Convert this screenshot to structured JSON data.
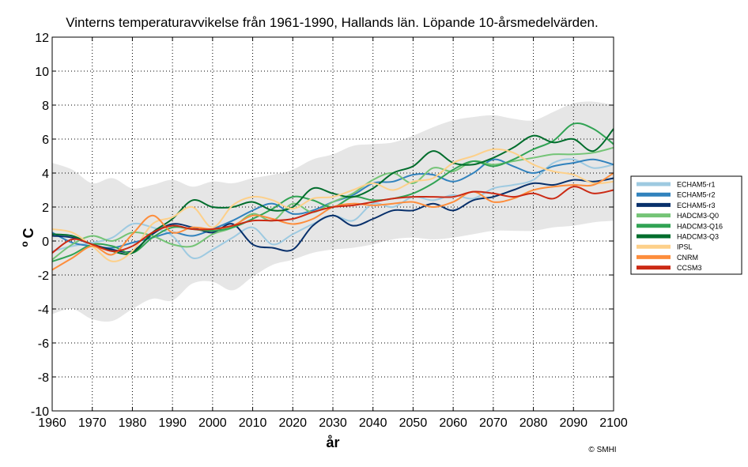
{
  "chart_data": {
    "type": "line",
    "title": "Vinterns temperaturavvikelse från 1961-1990, Hallands län. Löpande 10-årsmedelvärden.",
    "xlabel": "år",
    "ylabel_super": "o",
    "ylabel_main": "C",
    "xlim": [
      1960,
      2100
    ],
    "ylim": [
      -10,
      12
    ],
    "xticks": [
      1960,
      1970,
      1980,
      1990,
      2000,
      2010,
      2020,
      2030,
      2040,
      2050,
      2060,
      2070,
      2080,
      2090,
      2100
    ],
    "yticks": [
      -10,
      -8,
      -6,
      -4,
      -2,
      0,
      2,
      4,
      6,
      8,
      10,
      12
    ],
    "grid": true,
    "legend_position": "right",
    "credit": "© SMHI",
    "band": {
      "x": [
        1960,
        1965,
        1970,
        1975,
        1980,
        1985,
        1990,
        1995,
        2000,
        2005,
        2010,
        2015,
        2020,
        2025,
        2030,
        2035,
        2040,
        2045,
        2050,
        2055,
        2060,
        2065,
        2070,
        2075,
        2080,
        2085,
        2090,
        2095,
        2100
      ],
      "upper": [
        4.6,
        4.2,
        3.4,
        3.7,
        3.1,
        3.3,
        3.6,
        3.2,
        3.5,
        3.4,
        3.7,
        3.9,
        4.2,
        4.8,
        5.1,
        5.6,
        5.7,
        5.8,
        6.2,
        6.7,
        7.1,
        7.3,
        7.4,
        7.2,
        7.1,
        7.6,
        8.1,
        8.2,
        8.0
      ],
      "lower": [
        -4.3,
        -4.0,
        -4.6,
        -4.7,
        -4.0,
        -3.4,
        -3.5,
        -2.5,
        -2.4,
        -2.9,
        -2.1,
        -1.4,
        -1.1,
        -0.7,
        -0.5,
        -0.4,
        -0.2,
        0.1,
        0.2,
        0.1,
        0.2,
        0.4,
        0.6,
        0.6,
        0.6,
        0.8,
        0.9,
        1.1,
        1.2
      ]
    },
    "series": [
      {
        "name": "ECHAM5-r1",
        "color": "#9ecae1",
        "x": [
          1960,
          1965,
          1970,
          1975,
          1980,
          1985,
          1990,
          1995,
          2000,
          2005,
          2010,
          2015,
          2020,
          2025,
          2030,
          2035,
          2040,
          2045,
          2050,
          2055,
          2060,
          2065,
          2070,
          2075,
          2080,
          2085,
          2090,
          2095,
          2100
        ],
        "values": [
          -0.6,
          -0.3,
          -0.1,
          0.2,
          1.0,
          0.8,
          0.3,
          -1.0,
          -0.5,
          0.2,
          0.8,
          -0.2,
          0.4,
          1.0,
          1.5,
          1.2,
          2.2,
          2.0,
          2.6,
          2.4,
          2.7,
          2.5,
          3.1,
          3.3,
          3.6,
          4.6,
          4.8,
          4.3,
          4.5
        ]
      },
      {
        "name": "ECHAM5-r2",
        "color": "#3182bd",
        "x": [
          1960,
          1965,
          1970,
          1975,
          1980,
          1985,
          1990,
          1995,
          2000,
          2005,
          2010,
          2015,
          2020,
          2025,
          2030,
          2035,
          2040,
          2045,
          2050,
          2055,
          2060,
          2065,
          2070,
          2075,
          2080,
          2085,
          2090,
          2095,
          2100
        ],
        "values": [
          0.5,
          -0.1,
          -0.3,
          -0.4,
          -0.1,
          0.2,
          0.5,
          0.3,
          0.7,
          1.2,
          1.8,
          2.2,
          1.6,
          1.8,
          2.3,
          2.7,
          3.4,
          3.5,
          3.9,
          3.9,
          3.5,
          4.0,
          4.8,
          4.4,
          4.0,
          4.4,
          4.6,
          4.8,
          4.5
        ]
      },
      {
        "name": "ECHAM5-r3",
        "color": "#08306b",
        "x": [
          1960,
          1965,
          1970,
          1975,
          1980,
          1985,
          1990,
          1995,
          2000,
          2005,
          2010,
          2015,
          2020,
          2025,
          2030,
          2035,
          2040,
          2045,
          2050,
          2055,
          2060,
          2065,
          2070,
          2075,
          2080,
          2085,
          2090,
          2095,
          2100
        ],
        "values": [
          0.3,
          0.2,
          -0.2,
          -0.5,
          -0.6,
          0.4,
          1.0,
          0.8,
          0.5,
          1.0,
          -0.2,
          -0.4,
          -0.5,
          0.9,
          1.5,
          0.9,
          1.3,
          1.8,
          1.8,
          2.2,
          1.8,
          2.4,
          2.6,
          3.0,
          3.4,
          3.3,
          3.6,
          3.5,
          3.7
        ]
      },
      {
        "name": "HADCM3-Q0",
        "color": "#74c476",
        "x": [
          1960,
          1965,
          1970,
          1975,
          1980,
          1985,
          1990,
          1995,
          2000,
          2005,
          2010,
          2015,
          2020,
          2025,
          2030,
          2035,
          2040,
          2045,
          2050,
          2055,
          2060,
          2065,
          2070,
          2075,
          2080,
          2085,
          2090,
          2095,
          2100
        ],
        "values": [
          -1.1,
          -0.2,
          0.3,
          0.0,
          0.5,
          0.3,
          -0.2,
          -0.3,
          0.4,
          0.8,
          1.6,
          1.2,
          2.2,
          1.7,
          2.3,
          2.8,
          3.6,
          4.0,
          3.4,
          4.3,
          4.1,
          4.7,
          4.5,
          4.7,
          4.9,
          5.1,
          5.1,
          5.2,
          5.5
        ]
      },
      {
        "name": "HADCM3-Q16",
        "color": "#31a354",
        "x": [
          1960,
          1965,
          1970,
          1975,
          1980,
          1985,
          1990,
          1995,
          2000,
          2005,
          2010,
          2015,
          2020,
          2025,
          2030,
          2035,
          2040,
          2045,
          2050,
          2055,
          2060,
          2065,
          2070,
          2075,
          2080,
          2085,
          2090,
          2095,
          2100
        ],
        "values": [
          -1.2,
          -0.8,
          -0.2,
          -0.3,
          -0.7,
          0.2,
          0.8,
          0.7,
          0.6,
          0.8,
          1.3,
          1.9,
          2.6,
          2.4,
          2.0,
          2.6,
          2.4,
          2.5,
          2.8,
          3.4,
          4.2,
          4.7,
          4.4,
          4.8,
          5.4,
          5.9,
          6.9,
          6.6,
          5.7
        ]
      },
      {
        "name": "HADCM3-Q3",
        "color": "#006d2c",
        "x": [
          1960,
          1965,
          1970,
          1975,
          1980,
          1985,
          1990,
          1995,
          2000,
          2005,
          2010,
          2015,
          2020,
          2025,
          2030,
          2035,
          2040,
          2045,
          2050,
          2055,
          2060,
          2065,
          2070,
          2075,
          2080,
          2085,
          2090,
          2095,
          2100
        ],
        "values": [
          0.4,
          0.3,
          -0.2,
          -0.6,
          -0.7,
          0.5,
          1.3,
          2.4,
          2.0,
          2.0,
          2.3,
          1.8,
          2.0,
          3.1,
          2.8,
          2.6,
          3.1,
          4.0,
          4.4,
          5.3,
          4.6,
          4.5,
          4.9,
          5.5,
          6.2,
          5.8,
          6.0,
          5.3,
          6.6
        ]
      },
      {
        "name": "IPSL",
        "color": "#fdd08a",
        "x": [
          1960,
          1965,
          1970,
          1975,
          1980,
          1985,
          1990,
          1995,
          2000,
          2005,
          2010,
          2015,
          2020,
          2025,
          2030,
          2035,
          2040,
          2045,
          2050,
          2055,
          2060,
          2065,
          2070,
          2075,
          2080,
          2085,
          2090,
          2095,
          2100
        ],
        "values": [
          0.7,
          0.5,
          -0.3,
          -1.2,
          -0.6,
          1.0,
          1.4,
          2.0,
          0.8,
          2.1,
          2.6,
          2.4,
          1.9,
          2.5,
          2.6,
          3.0,
          3.4,
          3.0,
          3.5,
          3.7,
          4.6,
          5.0,
          5.4,
          5.2,
          4.5,
          4.1,
          3.9,
          3.4,
          3.5
        ]
      },
      {
        "name": "CNRM",
        "color": "#fd8d3c",
        "x": [
          1960,
          1965,
          1970,
          1975,
          1980,
          1985,
          1990,
          1995,
          2000,
          2005,
          2010,
          2015,
          2020,
          2025,
          2030,
          2035,
          2040,
          2045,
          2050,
          2055,
          2060,
          2065,
          2070,
          2075,
          2080,
          2085,
          2090,
          2095,
          2100
        ],
        "values": [
          -1.7,
          -1.0,
          -0.3,
          -0.8,
          0.4,
          1.5,
          0.5,
          0.8,
          0.7,
          0.9,
          1.5,
          1.3,
          1.0,
          1.3,
          2.0,
          2.2,
          2.1,
          2.2,
          2.3,
          2.0,
          2.3,
          2.9,
          2.3,
          2.5,
          3.0,
          3.2,
          3.3,
          3.3,
          4.0
        ]
      },
      {
        "name": "CCSM3",
        "color": "#cb2a14",
        "x": [
          1960,
          1965,
          1970,
          1975,
          1980,
          1985,
          1990,
          1995,
          2000,
          2005,
          2010,
          2015,
          2020,
          2025,
          2030,
          2035,
          2040,
          2045,
          2050,
          2055,
          2060,
          2065,
          2070,
          2075,
          2080,
          2085,
          2090,
          2095,
          2100
        ],
        "values": [
          -0.7,
          0.1,
          -0.2,
          -0.6,
          -0.3,
          0.5,
          0.9,
          0.7,
          0.7,
          0.9,
          1.2,
          1.2,
          1.3,
          1.7,
          2.0,
          2.1,
          2.3,
          2.5,
          2.6,
          2.6,
          2.6,
          2.9,
          2.8,
          2.6,
          2.8,
          2.5,
          3.2,
          2.8,
          3.0
        ]
      }
    ]
  }
}
